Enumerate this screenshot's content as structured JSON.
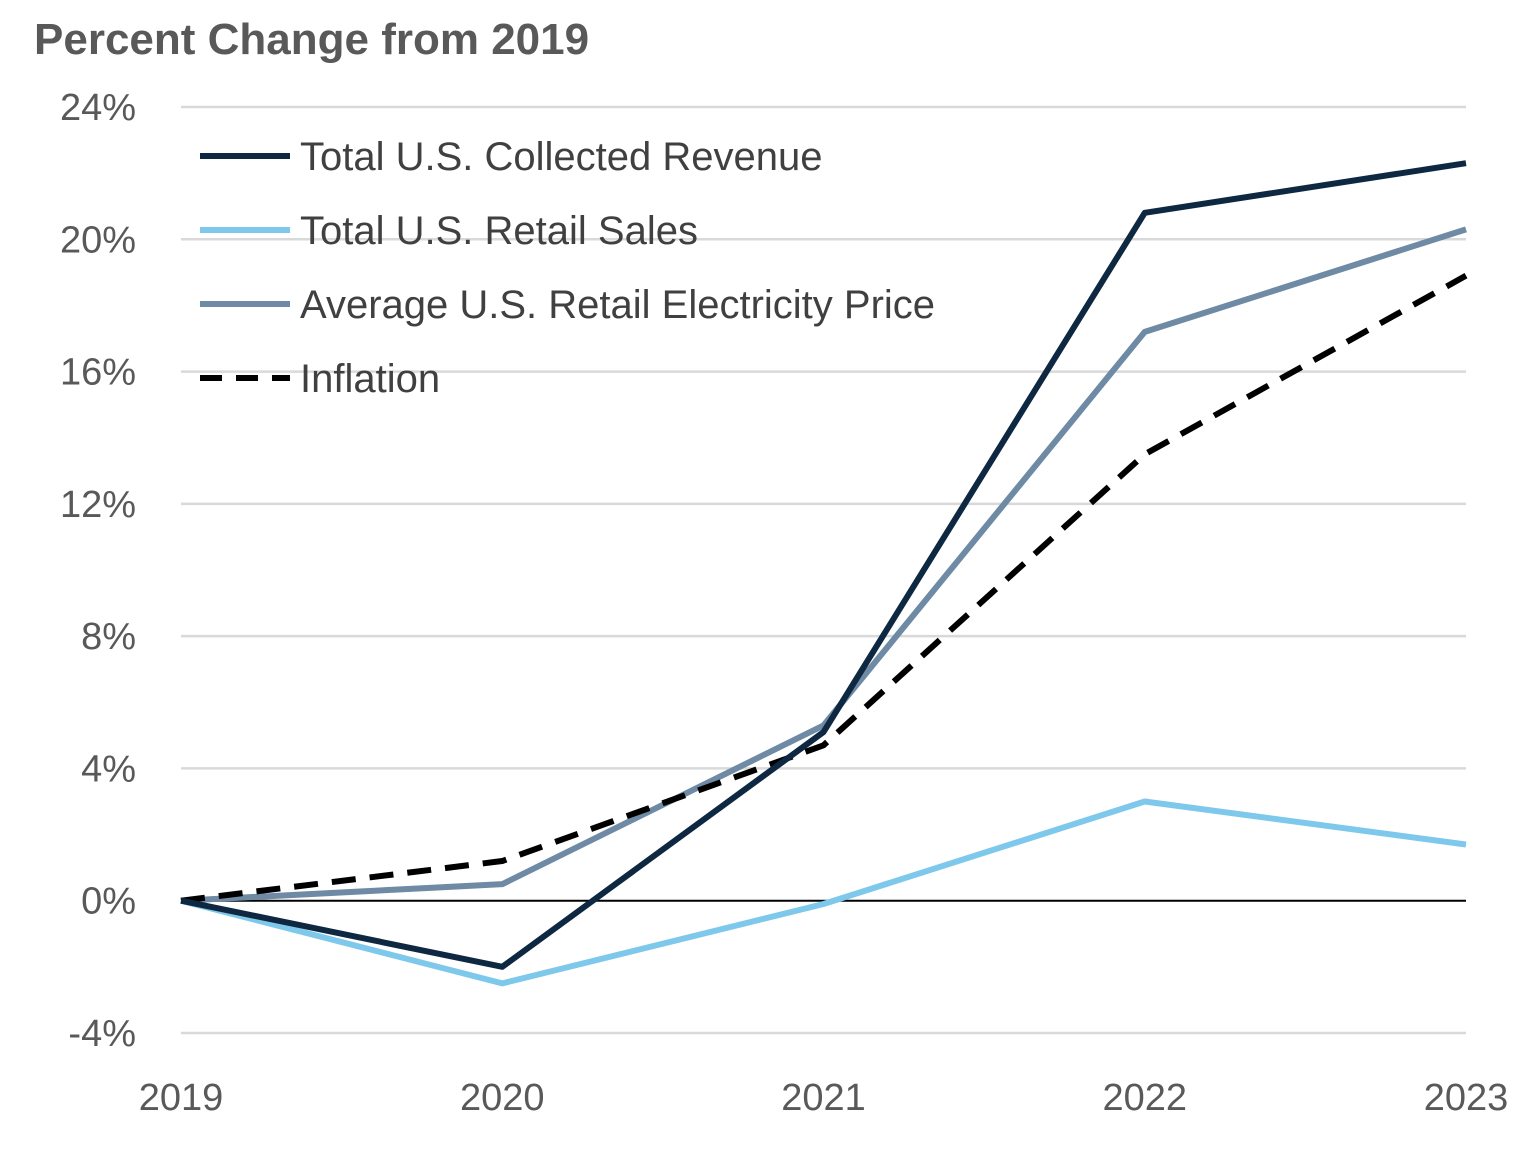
{
  "chart_data": {
    "type": "line",
    "title": "Percent Change from 2019",
    "xlabel": "",
    "ylabel": "",
    "categories": [
      "2019",
      "2020",
      "2021",
      "2022",
      "2023"
    ],
    "ylim": [
      -4,
      24
    ],
    "yticks": [
      -4,
      0,
      4,
      8,
      12,
      16,
      20,
      24
    ],
    "ytick_labels": [
      "-4%",
      "0%",
      "4%",
      "8%",
      "12%",
      "16%",
      "20%",
      "24%"
    ],
    "grid": true,
    "legend_position": "top-left",
    "series": [
      {
        "name": "Total U.S. Collected Revenue",
        "color": "#0e2841",
        "dashed": false,
        "values": [
          0,
          -2.0,
          5.1,
          20.8,
          22.3
        ]
      },
      {
        "name": "Total U.S. Retail Sales",
        "color": "#7ec8ec",
        "dashed": false,
        "values": [
          0,
          -2.5,
          -0.1,
          3.0,
          1.7
        ]
      },
      {
        "name": "Average U.S. Retail Electricity Price",
        "color": "#6e8aa4",
        "dashed": false,
        "values": [
          0,
          0.5,
          5.3,
          17.2,
          20.3
        ]
      },
      {
        "name": "Inflation",
        "color": "#000000",
        "dashed": true,
        "values": [
          0,
          1.2,
          4.7,
          13.5,
          18.9
        ]
      }
    ]
  }
}
